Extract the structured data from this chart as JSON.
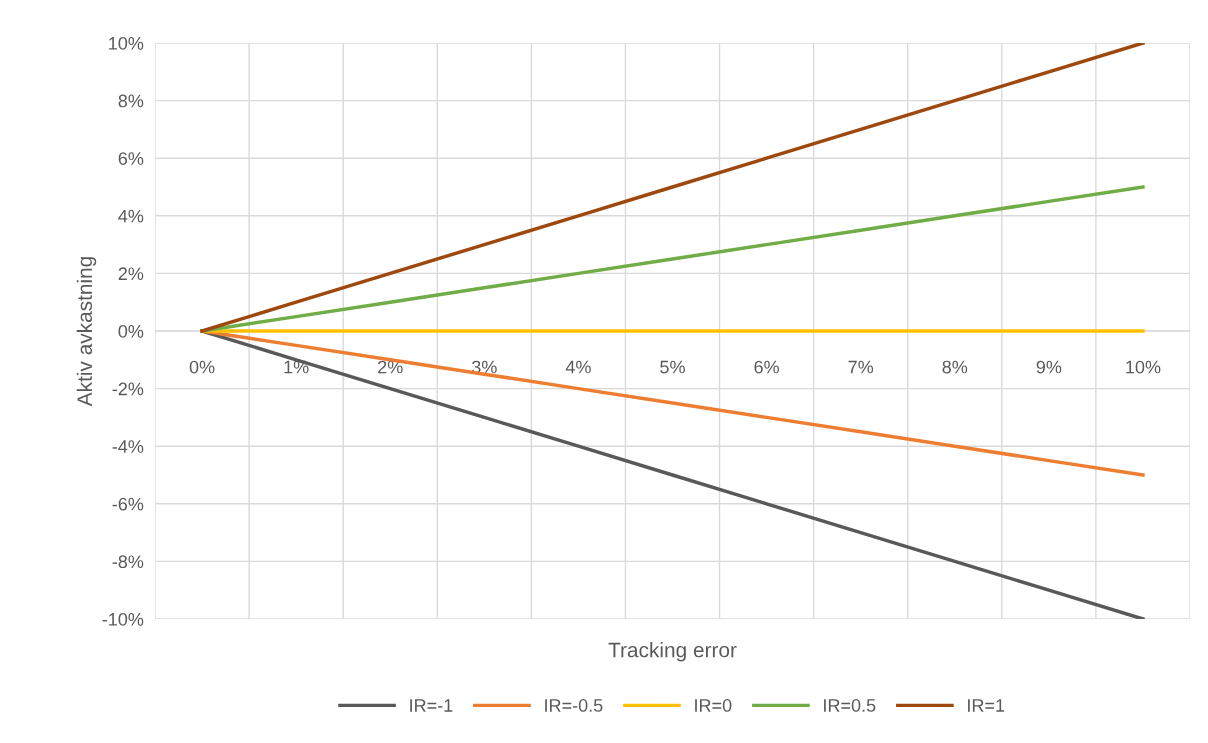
{
  "chart_data": {
    "type": "line",
    "xlabel": "Tracking error",
    "ylabel": "Aktiv avkastning",
    "categories": [
      "0%",
      "1%",
      "2%",
      "3%",
      "4%",
      "5%",
      "6%",
      "7%",
      "8%",
      "9%",
      "10%"
    ],
    "series": [
      {
        "name": "IR=-1",
        "color": "#595959",
        "values": [
          0,
          -1,
          -2,
          -3,
          -4,
          -5,
          -6,
          -7,
          -8,
          -9,
          -10
        ]
      },
      {
        "name": "IR=-0.5",
        "color": "#ed7d31",
        "values": [
          0,
          -0.5,
          -1,
          -1.5,
          -2,
          -2.5,
          -3,
          -3.5,
          -4,
          -4.5,
          -5
        ]
      },
      {
        "name": "IR=0",
        "color": "#ffc000",
        "values": [
          0,
          0,
          0,
          0,
          0,
          0,
          0,
          0,
          0,
          0,
          0
        ]
      },
      {
        "name": "IR=0.5",
        "color": "#70ad47",
        "values": [
          0,
          0.5,
          1,
          1.5,
          2,
          2.5,
          3,
          3.5,
          4,
          4.5,
          5
        ]
      },
      {
        "name": "IR=1",
        "color": "#9e480e",
        "values": [
          0,
          1,
          2,
          3,
          4,
          5,
          6,
          7,
          8,
          9,
          10
        ]
      }
    ],
    "ylim": [
      -10,
      10
    ],
    "yticks": [
      {
        "value": -10,
        "label": "-10%"
      },
      {
        "value": -8,
        "label": "-8%"
      },
      {
        "value": -6,
        "label": "-6%"
      },
      {
        "value": -4,
        "label": "-4%"
      },
      {
        "value": -2,
        "label": "-2%"
      },
      {
        "value": 0,
        "label": "0%"
      },
      {
        "value": 2,
        "label": "2%"
      },
      {
        "value": 4,
        "label": "4%"
      },
      {
        "value": 6,
        "label": "6%"
      },
      {
        "value": 8,
        "label": "8%"
      },
      {
        "value": 10,
        "label": "10%"
      }
    ],
    "grid": true,
    "legend": "bottom",
    "marker": "none",
    "line_style": "solid"
  }
}
